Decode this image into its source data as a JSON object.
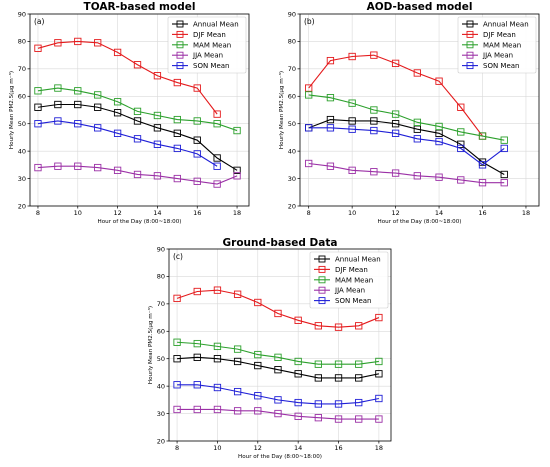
{
  "chart_data": [
    {
      "type": "line",
      "title": "TOAR-based model",
      "panel_label": "(a)",
      "xlabel": "Hour of the Day (8:00~18:00)",
      "ylabel": "Hourly Mean PM2.5(μg m⁻³)",
      "xlim": [
        7.6,
        18.6
      ],
      "ylim": [
        20,
        90
      ],
      "xticks": [
        8,
        10,
        12,
        14,
        16,
        18
      ],
      "yticks": [
        20,
        30,
        40,
        50,
        60,
        70,
        80,
        90
      ],
      "legend_position": "top-right",
      "grid": true,
      "series": [
        {
          "name": "Annual Mean",
          "color": "#000000",
          "x": [
            8,
            9,
            10,
            11,
            12,
            13,
            14,
            15,
            16,
            17,
            18
          ],
          "y": [
            56,
            57,
            57,
            56,
            54,
            51,
            48.5,
            46.5,
            44,
            37.5,
            33
          ]
        },
        {
          "name": "DJF Mean",
          "color": "#e41a1c",
          "x": [
            8,
            9,
            10,
            11,
            12,
            13,
            14,
            15,
            16,
            17
          ],
          "y": [
            77.5,
            79.5,
            80,
            79.5,
            76,
            71.5,
            67.5,
            65,
            63,
            53.5
          ]
        },
        {
          "name": "MAM Mean",
          "color": "#2ca02c",
          "x": [
            8,
            9,
            10,
            11,
            12,
            13,
            14,
            15,
            16,
            17,
            18
          ],
          "y": [
            62,
            63,
            62,
            60.5,
            58,
            54.5,
            53,
            51.5,
            51,
            50,
            47.5
          ]
        },
        {
          "name": "JJA Mean",
          "color": "#9b30a6",
          "x": [
            8,
            9,
            10,
            11,
            12,
            13,
            14,
            15,
            16,
            17,
            18
          ],
          "y": [
            34,
            34.5,
            34.5,
            34,
            33,
            31.5,
            31,
            30,
            29,
            28,
            31
          ]
        },
        {
          "name": "SON Mean",
          "color": "#1f1fd6",
          "x": [
            8,
            9,
            10,
            11,
            12,
            13,
            14,
            15,
            16,
            17
          ],
          "y": [
            50,
            51,
            50,
            48.5,
            46.5,
            44.5,
            42.5,
            41,
            39,
            34.5
          ]
        }
      ]
    },
    {
      "type": "line",
      "title": "AOD-based model",
      "panel_label": "(b)",
      "xlabel": "Hour of the Day (8:00~18:00)",
      "ylabel": "Hourly Mean PM2.5(μg m⁻³)",
      "xlim": [
        7.6,
        18.6
      ],
      "ylim": [
        20,
        90
      ],
      "xticks": [
        8,
        10,
        12,
        14,
        16,
        18
      ],
      "yticks": [
        20,
        30,
        40,
        50,
        60,
        70,
        80,
        90
      ],
      "legend_position": "top-right",
      "grid": true,
      "series": [
        {
          "name": "Annual Mean",
          "color": "#000000",
          "x": [
            8,
            9,
            10,
            11,
            12,
            13,
            14,
            15,
            16,
            17
          ],
          "y": [
            48.5,
            51.5,
            51,
            51,
            50,
            48,
            46.5,
            42.5,
            36,
            31.5
          ]
        },
        {
          "name": "DJF Mean",
          "color": "#e41a1c",
          "x": [
            8,
            9,
            10,
            11,
            12,
            13,
            14,
            15,
            16
          ],
          "y": [
            63,
            73,
            74.5,
            75,
            72,
            68.5,
            65.5,
            56,
            45.5
          ]
        },
        {
          "name": "MAM Mean",
          "color": "#2ca02c",
          "x": [
            8,
            9,
            10,
            11,
            12,
            13,
            14,
            15,
            16,
            17
          ],
          "y": [
            60.5,
            59.5,
            57.5,
            55,
            53.5,
            50.5,
            49,
            47,
            45.5,
            44
          ]
        },
        {
          "name": "JJA Mean",
          "color": "#9b30a6",
          "x": [
            8,
            9,
            10,
            11,
            12,
            13,
            14,
            15,
            16,
            17
          ],
          "y": [
            35.5,
            34.5,
            33,
            32.5,
            32,
            31,
            30.5,
            29.5,
            28.5,
            28.5
          ]
        },
        {
          "name": "SON Mean",
          "color": "#1f1fd6",
          "x": [
            8,
            9,
            10,
            11,
            12,
            13,
            14,
            15,
            16,
            17
          ],
          "y": [
            48.5,
            48.5,
            48,
            47.5,
            46.5,
            44.5,
            43.5,
            41,
            35,
            41
          ]
        }
      ]
    },
    {
      "type": "line",
      "title": "Ground-based Data",
      "panel_label": "(c)",
      "xlabel": "Hour of the Day (8:00~18:00)",
      "ylabel": "Hourly Mean PM2.5(μg m⁻³)",
      "xlim": [
        7.6,
        18.6
      ],
      "ylim": [
        20,
        90
      ],
      "xticks": [
        8,
        10,
        12,
        14,
        16,
        18
      ],
      "yticks": [
        20,
        30,
        40,
        50,
        60,
        70,
        80,
        90
      ],
      "legend_position": "top-right",
      "grid": true,
      "series": [
        {
          "name": "Annual Mean",
          "color": "#000000",
          "x": [
            8,
            9,
            10,
            11,
            12,
            13,
            14,
            15,
            16,
            17,
            18
          ],
          "y": [
            50,
            50.5,
            50,
            49,
            47.5,
            46,
            44.5,
            43,
            43,
            43,
            44.5
          ]
        },
        {
          "name": "DJF Mean",
          "color": "#e41a1c",
          "x": [
            8,
            9,
            10,
            11,
            12,
            13,
            14,
            15,
            16,
            17,
            18
          ],
          "y": [
            72,
            74.5,
            75,
            73.5,
            70.5,
            66.5,
            64,
            62,
            61.5,
            62,
            65
          ]
        },
        {
          "name": "MAM Mean",
          "color": "#2ca02c",
          "x": [
            8,
            9,
            10,
            11,
            12,
            13,
            14,
            15,
            16,
            17,
            18
          ],
          "y": [
            56,
            55.5,
            54.5,
            53.5,
            51.5,
            50.5,
            49,
            48,
            48,
            48,
            49
          ]
        },
        {
          "name": "JJA Mean",
          "color": "#9b30a6",
          "x": [
            8,
            9,
            10,
            11,
            12,
            13,
            14,
            15,
            16,
            17,
            18
          ],
          "y": [
            31.5,
            31.5,
            31.5,
            31,
            31,
            30,
            29,
            28.5,
            28,
            28,
            28
          ]
        },
        {
          "name": "SON Mean",
          "color": "#1f1fd6",
          "x": [
            8,
            9,
            10,
            11,
            12,
            13,
            14,
            15,
            16,
            17,
            18
          ],
          "y": [
            40.5,
            40.5,
            39.5,
            38,
            36.5,
            35,
            34,
            33.5,
            33.5,
            34,
            35.5
          ]
        }
      ]
    }
  ]
}
